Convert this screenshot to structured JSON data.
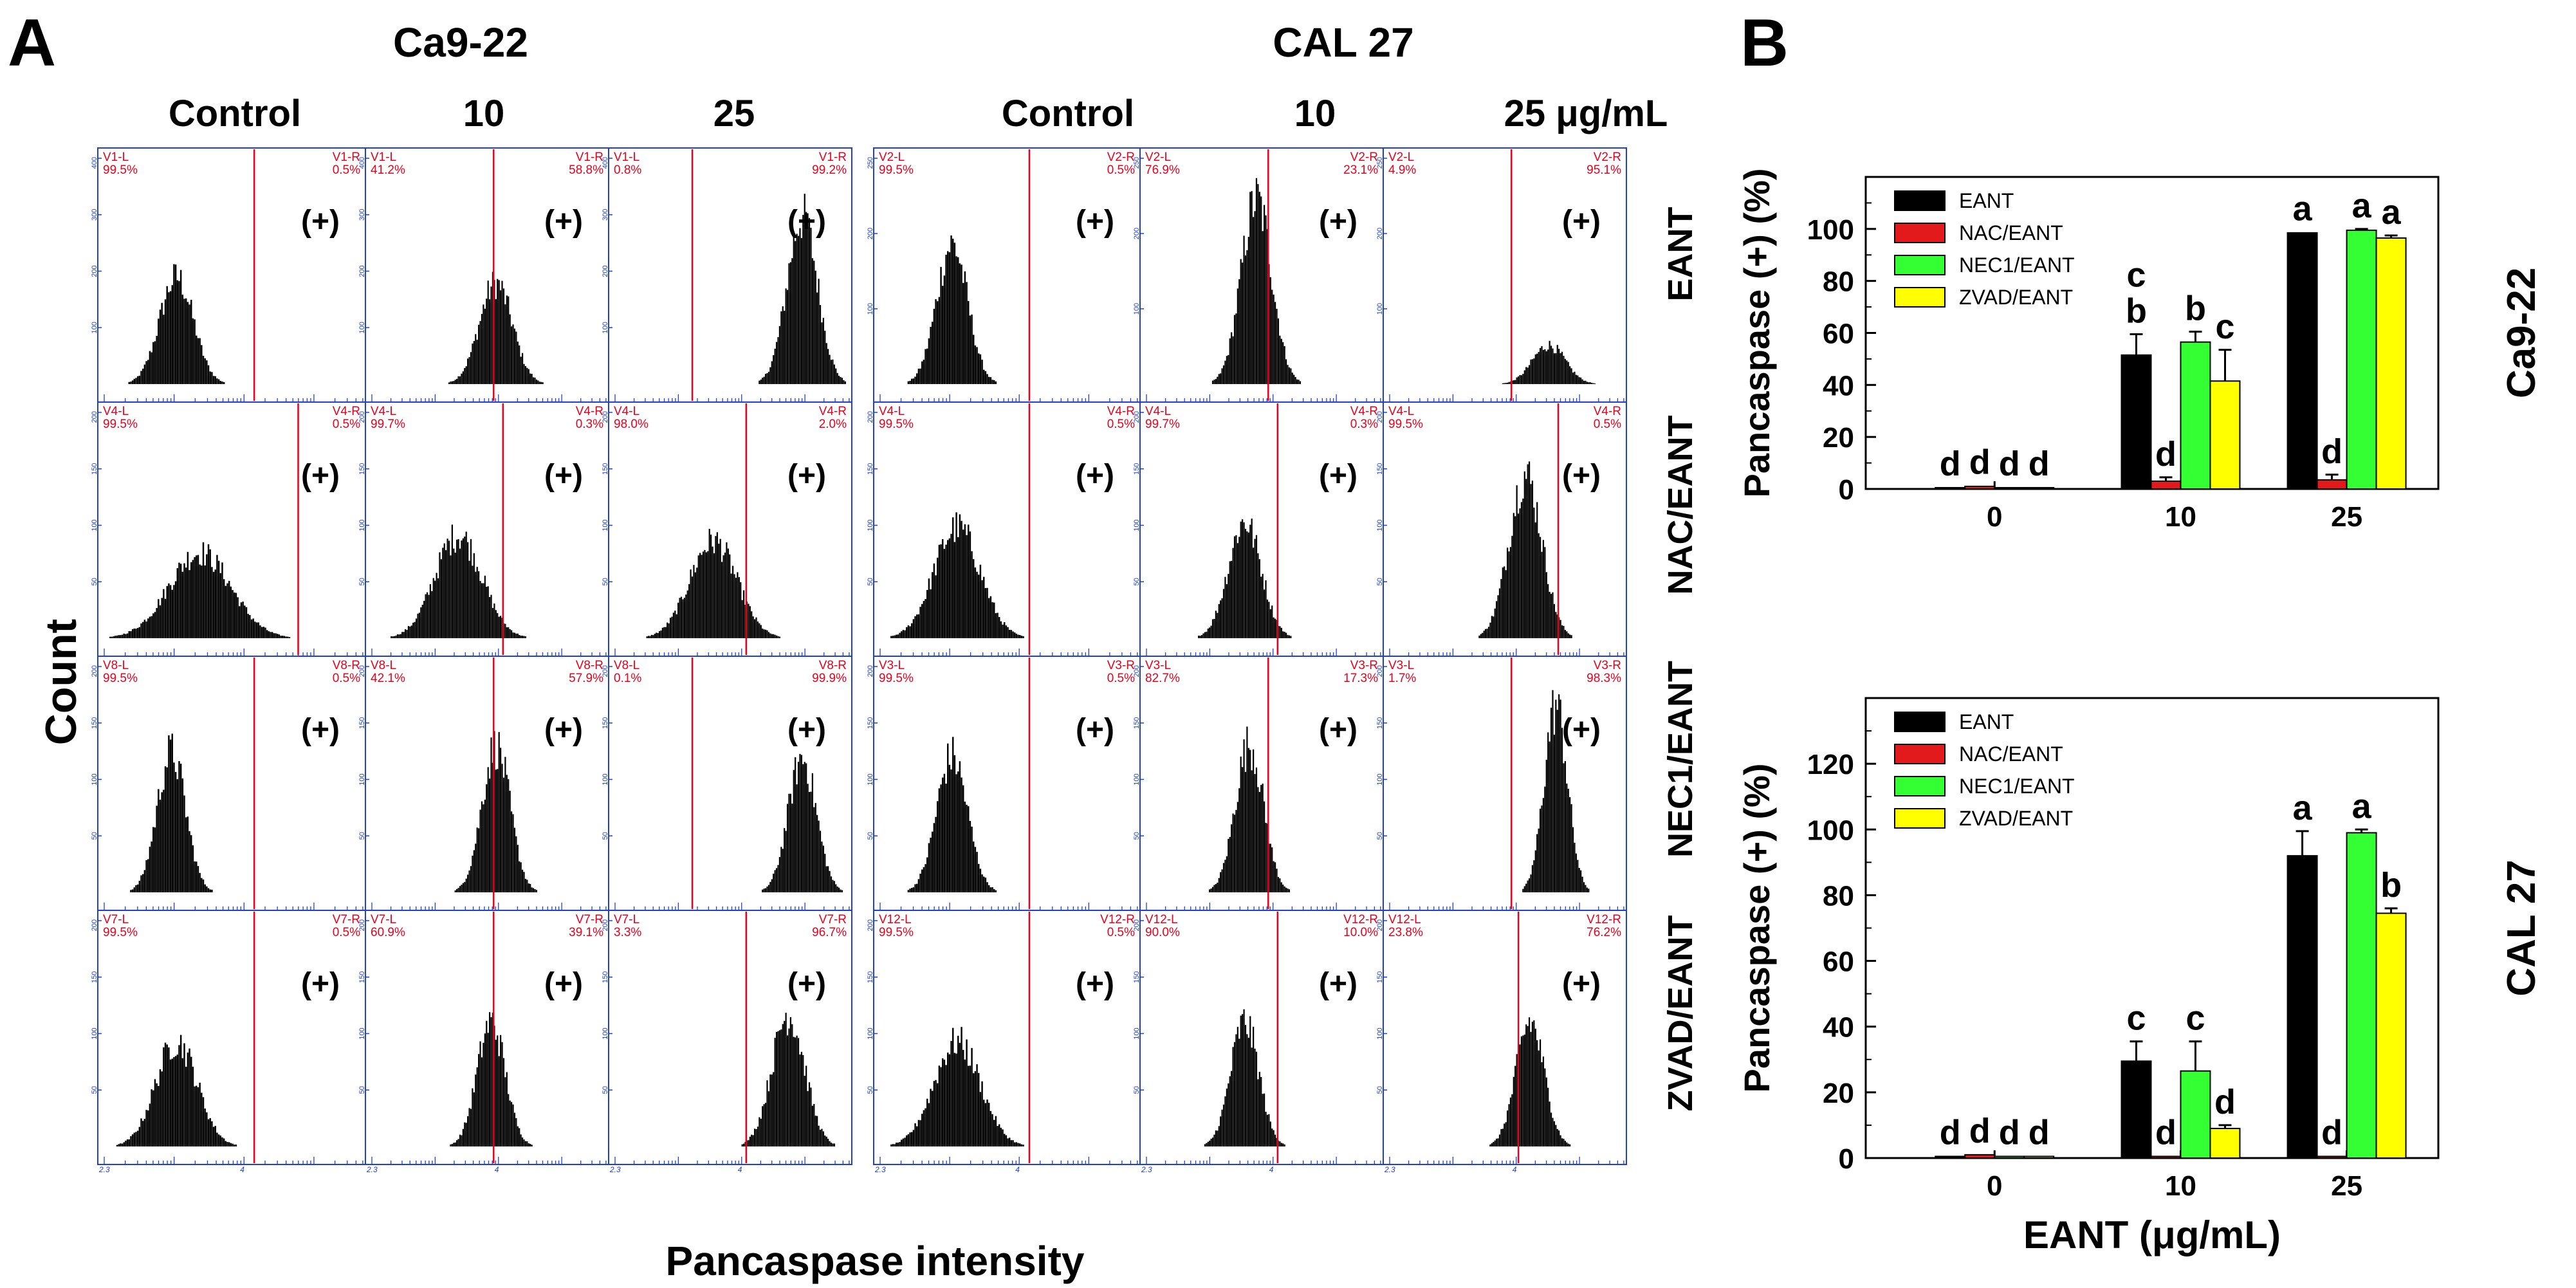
{
  "panel_a_label": "A",
  "panel_b_label": "B",
  "flow": {
    "cell_lines": [
      "Ca9-22",
      "CAL 27"
    ],
    "column_headers": [
      "Control",
      "10",
      "25",
      "Control",
      "10",
      "25 μg/mL"
    ],
    "row_labels": [
      "EANT",
      "NAC/EANT",
      "NEC1/EANT",
      "ZVAD/EANT"
    ],
    "ylabel": "Count",
    "xlabel": "Pancaspase intensity",
    "positive_marker": "(+)",
    "axis_min_label": "2.3",
    "axis_tick_label": "4",
    "histogram_color": "#000000",
    "gate_color": "#e8001c",
    "frame_color": "#1f3fd6",
    "panels": [
      [
        {
          "l_name": "V1-L",
          "l_pct": "99.5%",
          "r_name": "V1-R",
          "r_pct": "0.5%",
          "ymax": "400",
          "yt": [
            "100",
            "200",
            "300"
          ],
          "peak": 0.28,
          "width": 0.065,
          "height": 0.55,
          "gate": 0.58
        },
        {
          "l_name": "V1-L",
          "l_pct": "41.2%",
          "r_name": "V1-R",
          "r_pct": "58.8%",
          "ymax": "400",
          "yt": [
            "100",
            "200",
            "300"
          ],
          "peak": 0.53,
          "width": 0.07,
          "height": 0.52,
          "gate": 0.52
        },
        {
          "l_name": "V1-L",
          "l_pct": "0.8%",
          "r_name": "V1-R",
          "r_pct": "99.2%",
          "ymax": "400",
          "yt": [
            "100",
            "200",
            "300"
          ],
          "peak": 0.8,
          "width": 0.065,
          "height": 0.86,
          "gate": 0.33
        },
        {
          "l_name": "V2-L",
          "l_pct": "99.5%",
          "r_name": "V2-R",
          "r_pct": "0.5%",
          "ymax": "250",
          "yt": [
            "100",
            "200"
          ],
          "peak": 0.28,
          "width": 0.06,
          "height": 0.72,
          "gate": 0.58
        },
        {
          "l_name": "V2-L",
          "l_pct": "76.9%",
          "r_name": "V2-R",
          "r_pct": "23.1%",
          "ymax": "250",
          "yt": [
            "100",
            "200"
          ],
          "peak": 0.47,
          "width": 0.065,
          "height": 0.95,
          "gate": 0.52
        },
        {
          "l_name": "V2-L",
          "l_pct": "4.9%",
          "r_name": "V2-R",
          "r_pct": "95.1%",
          "ymax": "250",
          "yt": [
            "100",
            "200"
          ],
          "peak": 0.68,
          "width": 0.07,
          "height": 0.2,
          "gate": 0.52
        }
      ],
      [
        {
          "l_name": "V4-L",
          "l_pct": "99.5%",
          "r_name": "V4-R",
          "r_pct": "0.5%",
          "ymax": "200",
          "yt": [
            "50",
            "100",
            "150"
          ],
          "peak": 0.37,
          "width": 0.12,
          "height": 0.44,
          "gate": 0.75
        },
        {
          "l_name": "V4-L",
          "l_pct": "99.7%",
          "r_name": "V4-R",
          "r_pct": "0.3%",
          "ymax": "200",
          "yt": [
            "50",
            "100",
            "150"
          ],
          "peak": 0.37,
          "width": 0.1,
          "height": 0.53,
          "gate": 0.56
        },
        {
          "l_name": "V4-L",
          "l_pct": "98.0%",
          "r_name": "V4-R",
          "r_pct": "2.0%",
          "ymax": "200",
          "yt": [
            "50",
            "100",
            "150"
          ],
          "peak": 0.42,
          "width": 0.1,
          "height": 0.5,
          "gate": 0.56
        },
        {
          "l_name": "V4-L",
          "l_pct": "99.5%",
          "r_name": "V4-R",
          "r_pct": "0.5%",
          "ymax": "200",
          "yt": [
            "50",
            "100",
            "150"
          ],
          "peak": 0.3,
          "width": 0.09,
          "height": 0.57,
          "gate": 0.58
        },
        {
          "l_name": "V4-L",
          "l_pct": "99.7%",
          "r_name": "V4-R",
          "r_pct": "0.3%",
          "ymax": "200",
          "yt": [
            "50",
            "100",
            "150"
          ],
          "peak": 0.42,
          "width": 0.07,
          "height": 0.6,
          "gate": 0.56
        },
        {
          "l_name": "V4-L",
          "l_pct": "99.5%",
          "r_name": "V4-R",
          "r_pct": "0.5%",
          "ymax": "200",
          "yt": [
            "50",
            "100",
            "150"
          ],
          "peak": 0.58,
          "width": 0.07,
          "height": 0.84,
          "gate": 0.72
        }
      ],
      [
        {
          "l_name": "V8-L",
          "l_pct": "99.5%",
          "r_name": "V8-R",
          "r_pct": "0.5%",
          "ymax": "200",
          "yt": [
            "50",
            "100",
            "150"
          ],
          "peak": 0.26,
          "width": 0.055,
          "height": 0.72,
          "gate": 0.58
        },
        {
          "l_name": "V8-L",
          "l_pct": "42.1%",
          "r_name": "V8-R",
          "r_pct": "57.9%",
          "ymax": "200",
          "yt": [
            "50",
            "100",
            "150"
          ],
          "peak": 0.53,
          "width": 0.06,
          "height": 0.75,
          "gate": 0.52
        },
        {
          "l_name": "V8-L",
          "l_pct": "0.1%",
          "r_name": "V8-R",
          "r_pct": "99.9%",
          "ymax": "200",
          "yt": [
            "50",
            "100",
            "150"
          ],
          "peak": 0.8,
          "width": 0.06,
          "height": 0.69,
          "gate": 0.33
        },
        {
          "l_name": "V3-L",
          "l_pct": "99.5%",
          "r_name": "V3-R",
          "r_pct": "0.5%",
          "ymax": "200",
          "yt": [
            "50",
            "100",
            "150"
          ],
          "peak": 0.28,
          "width": 0.06,
          "height": 0.7,
          "gate": 0.58
        },
        {
          "l_name": "V3-L",
          "l_pct": "82.7%",
          "r_name": "V3-R",
          "r_pct": "17.3%",
          "ymax": "200",
          "yt": [
            "50",
            "100",
            "150"
          ],
          "peak": 0.44,
          "width": 0.06,
          "height": 0.76,
          "gate": 0.52
        },
        {
          "l_name": "V3-L",
          "l_pct": "1.7%",
          "r_name": "V3-R",
          "r_pct": "98.3%",
          "ymax": "200",
          "yt": [
            "50",
            "100",
            "150"
          ],
          "peak": 0.71,
          "width": 0.05,
          "height": 0.96,
          "gate": 0.52
        }
      ],
      [
        {
          "l_name": "V7-L",
          "l_pct": "99.5%",
          "r_name": "V7-R",
          "r_pct": "0.5%",
          "ymax": "200",
          "yt": [
            "50",
            "100",
            "150"
          ],
          "peak": 0.28,
          "width": 0.08,
          "height": 0.54,
          "gate": 0.58
        },
        {
          "l_name": "V7-L",
          "l_pct": "60.9%",
          "r_name": "V7-R",
          "r_pct": "39.1%",
          "ymax": "200",
          "yt": [
            "50",
            "100",
            "150"
          ],
          "peak": 0.51,
          "width": 0.06,
          "height": 0.64,
          "gate": 0.52
        },
        {
          "l_name": "V7-L",
          "l_pct": "3.3%",
          "r_name": "V7-R",
          "r_pct": "96.7%",
          "ymax": "200",
          "yt": [
            "50",
            "100",
            "150"
          ],
          "peak": 0.74,
          "width": 0.07,
          "height": 0.68,
          "gate": 0.56
        },
        {
          "l_name": "V12-L",
          "l_pct": "99.5%",
          "r_name": "V12-R",
          "r_pct": "0.5%",
          "ymax": "200",
          "yt": [
            "50",
            "100",
            "150"
          ],
          "peak": 0.3,
          "width": 0.09,
          "height": 0.54,
          "gate": 0.58
        },
        {
          "l_name": "V12-L",
          "l_pct": "90.0%",
          "r_name": "V12-R",
          "r_pct": "10.0%",
          "ymax": "200",
          "yt": [
            "50",
            "100",
            "150"
          ],
          "peak": 0.42,
          "width": 0.06,
          "height": 0.64,
          "gate": 0.56
        },
        {
          "l_name": "V12-L",
          "l_pct": "23.8%",
          "r_name": "V12-R",
          "r_pct": "76.2%",
          "ymax": "200",
          "yt": [
            "50",
            "100",
            "150"
          ],
          "peak": 0.6,
          "width": 0.06,
          "height": 0.64,
          "gate": 0.55
        }
      ]
    ]
  },
  "chart_data": [
    {
      "type": "bar",
      "title": "",
      "side_label": "Ca9-22",
      "xlabel": "",
      "ylabel": "Pancaspase (+) (%)",
      "ylim": [
        0,
        120
      ],
      "yticks": [
        "0",
        "20",
        "40",
        "60",
        "80",
        "100"
      ],
      "categories": [
        "0",
        "10",
        "25"
      ],
      "series": [
        {
          "name": "EANT",
          "color": "#000000",
          "values": [
            0.5,
            51.5,
            98.5
          ],
          "errors": [
            0.2,
            8.0,
            0.3
          ],
          "letters": [
            "d",
            "c b",
            "a"
          ]
        },
        {
          "name": "NAC/EANT",
          "color": "#e31a1c",
          "values": [
            1.0,
            3.0,
            3.5
          ],
          "errors": [
            0.3,
            1.5,
            2.0
          ],
          "letters": [
            "d",
            "d",
            "d"
          ]
        },
        {
          "name": "NEC1/EANT",
          "color": "#33ff33",
          "values": [
            0.5,
            56.5,
            99.5
          ],
          "errors": [
            0.2,
            4.0,
            0.5
          ],
          "letters": [
            "d",
            "b",
            "a"
          ]
        },
        {
          "name": "ZVAD/EANT",
          "color": "#ffff00",
          "values": [
            0.5,
            41.5,
            96.5
          ],
          "errors": [
            0.2,
            12.0,
            1.0
          ],
          "letters": [
            "d",
            "c",
            "a"
          ]
        }
      ]
    },
    {
      "type": "bar",
      "title": "",
      "side_label": "CAL 27",
      "xlabel": "EANT (μg/mL)",
      "ylabel": "Pancaspase (+) (%)",
      "ylim": [
        0,
        140
      ],
      "yticks": [
        "0",
        "20",
        "40",
        "60",
        "80",
        "100",
        "120"
      ],
      "categories": [
        "0",
        "10",
        "25"
      ],
      "series": [
        {
          "name": "EANT",
          "color": "#000000",
          "values": [
            0.5,
            29.5,
            92.0
          ],
          "errors": [
            0.2,
            6.0,
            7.5
          ],
          "letters": [
            "d",
            "c",
            "a"
          ]
        },
        {
          "name": "NAC/EANT",
          "color": "#e31a1c",
          "values": [
            1.0,
            0.5,
            0.5
          ],
          "errors": [
            0.2,
            0.2,
            0.2
          ],
          "letters": [
            "d",
            "d",
            "d"
          ]
        },
        {
          "name": "NEC1/EANT",
          "color": "#33ff33",
          "values": [
            0.5,
            26.5,
            99.0
          ],
          "errors": [
            0.2,
            9.0,
            1.0
          ],
          "letters": [
            "d",
            "c",
            "a"
          ]
        },
        {
          "name": "ZVAD/EANT",
          "color": "#ffff00",
          "values": [
            0.5,
            9.0,
            74.5
          ],
          "errors": [
            0.2,
            1.0,
            1.5
          ],
          "letters": [
            "d",
            "d",
            "b"
          ]
        }
      ]
    }
  ]
}
